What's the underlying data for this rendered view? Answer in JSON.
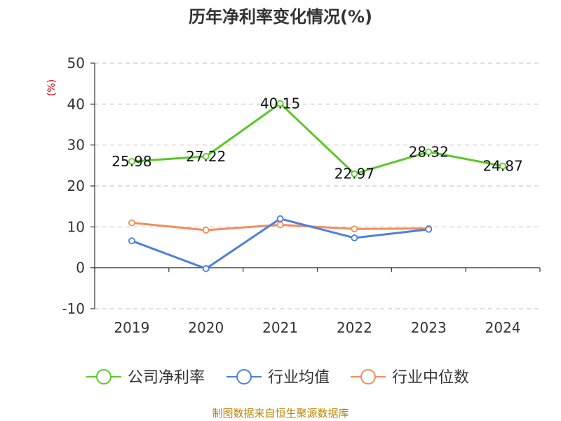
{
  "chart_data": {
    "type": "line",
    "title": "历年净利率变化情况(%)",
    "ylabel": "(%)",
    "xlabel": "",
    "categories": [
      "2019",
      "2020",
      "2021",
      "2022",
      "2023",
      "2024"
    ],
    "ylim": [
      -10,
      50
    ],
    "yticks": [
      -10,
      0,
      10,
      20,
      30,
      40,
      50
    ],
    "grid": true,
    "legend_position": "bottom",
    "series": [
      {
        "name": "公司净利率",
        "color": "#5cc72a",
        "values": [
          25.98,
          27.22,
          40.15,
          22.97,
          28.32,
          24.87
        ],
        "labels": [
          "25.98",
          "27.22",
          "40.15",
          "22.97",
          "28.32",
          "24.87"
        ]
      },
      {
        "name": "行业均值",
        "color": "#4f7fdc",
        "values": [
          6.6,
          -0.2,
          12.0,
          7.3,
          9.4,
          null
        ]
      },
      {
        "name": "行业中位数",
        "color": "#f28e5b",
        "values": [
          11.0,
          9.2,
          10.5,
          9.5,
          9.6,
          null
        ]
      }
    ]
  },
  "source": "制图数据来自恒生聚源数据库"
}
